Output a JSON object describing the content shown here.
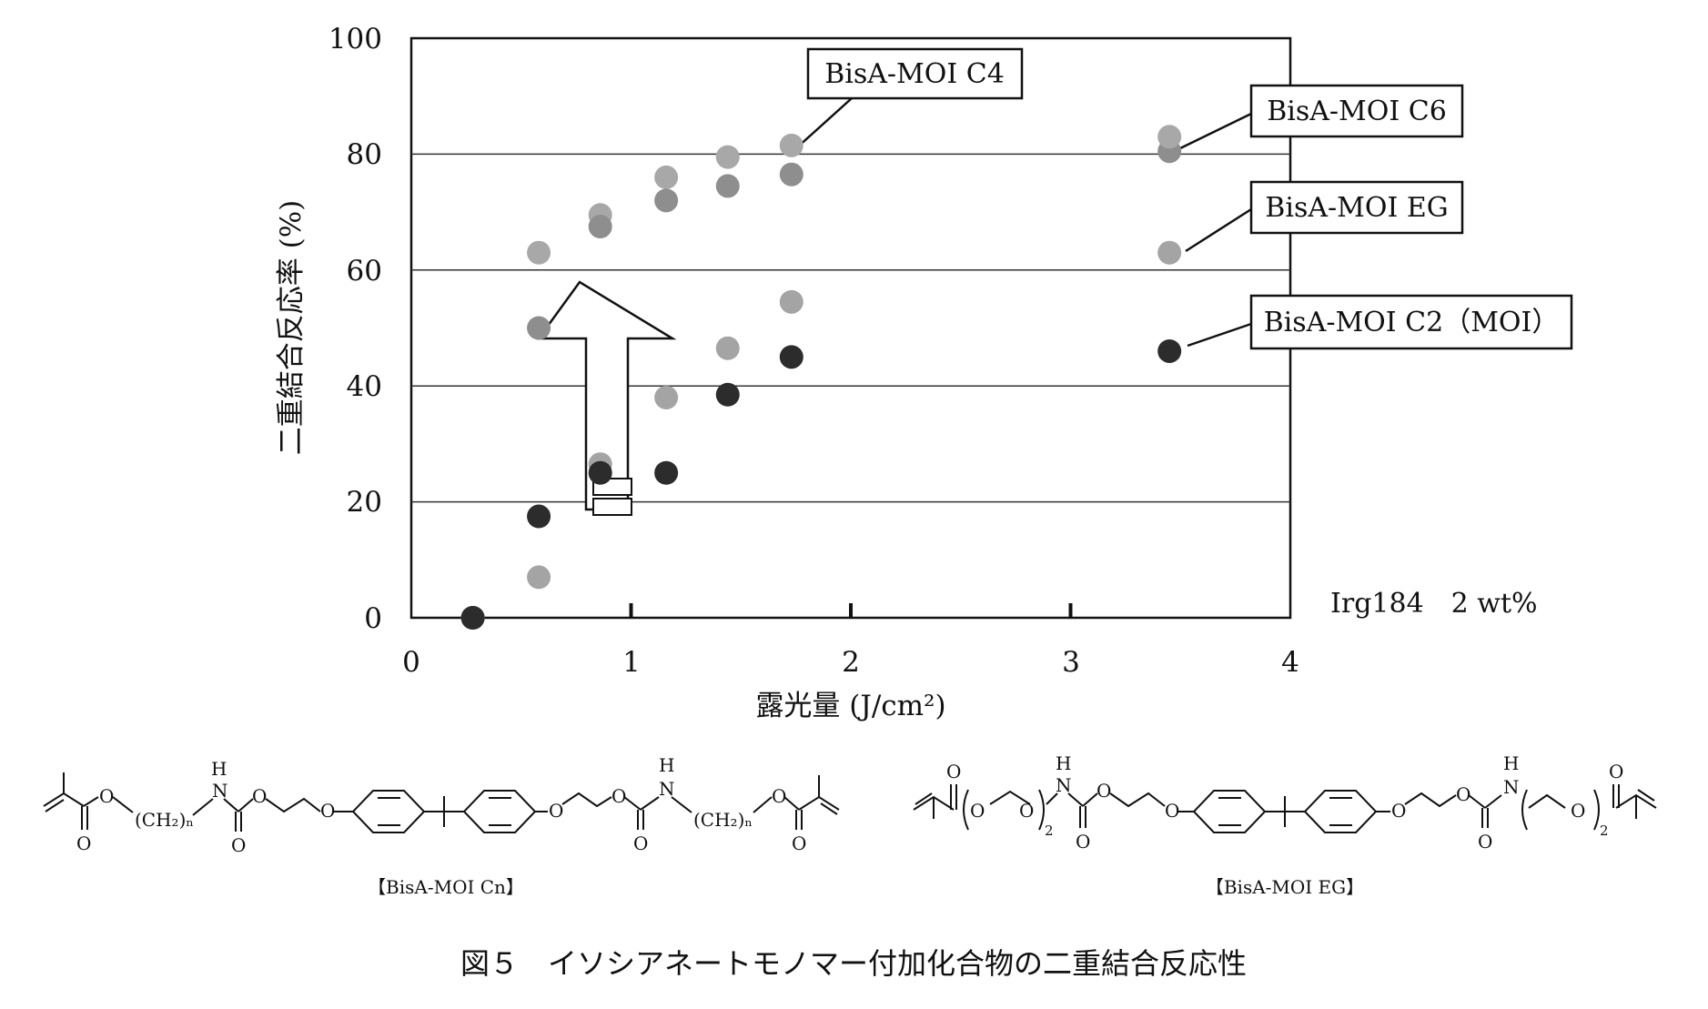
{
  "chart_data": {
    "type": "scatter",
    "title": "",
    "xlabel": "露光量 (J/cm²)",
    "ylabel": "二重結合反応率 (%)",
    "xlim": [
      0,
      4
    ],
    "ylim": [
      0,
      100
    ],
    "xticks": [
      "0",
      "1",
      "2",
      "3",
      "4"
    ],
    "yticks": [
      "0",
      "20",
      "40",
      "60",
      "80",
      "100"
    ],
    "grid": "horizontal",
    "series": [
      {
        "name": "BisA-MOI C4",
        "color": "#a8a8a8",
        "points": [
          {
            "x": 0.28,
            "y": 0
          },
          {
            "x": 0.58,
            "y": 63
          },
          {
            "x": 0.86,
            "y": 69.5
          },
          {
            "x": 1.16,
            "y": 76
          },
          {
            "x": 1.44,
            "y": 79.5
          },
          {
            "x": 1.73,
            "y": 81.5
          }
        ]
      },
      {
        "name": "BisA-MOI C6",
        "color": "#8e8e8e",
        "points": [
          {
            "x": 0.28,
            "y": 0
          },
          {
            "x": 0.58,
            "y": 50
          },
          {
            "x": 0.86,
            "y": 67.5
          },
          {
            "x": 1.16,
            "y": 72
          },
          {
            "x": 1.44,
            "y": 74.5
          },
          {
            "x": 1.73,
            "y": 76.5
          },
          {
            "x": 3.45,
            "y": 80.5
          }
        ]
      },
      {
        "name": "BisA-MOI EG",
        "color": "#a4a4a4",
        "points": [
          {
            "x": 0.28,
            "y": 0
          },
          {
            "x": 0.58,
            "y": 7
          },
          {
            "x": 0.86,
            "y": 26.5
          },
          {
            "x": 1.16,
            "y": 38
          },
          {
            "x": 1.44,
            "y": 46.5
          },
          {
            "x": 1.73,
            "y": 54.5
          },
          {
            "x": 3.45,
            "y": 63
          }
        ]
      },
      {
        "name": "BisA-MOI C2 (MOI)",
        "color": "#2c2c2c",
        "points": [
          {
            "x": 0.28,
            "y": 0
          },
          {
            "x": 0.58,
            "y": 17.5
          },
          {
            "x": 0.86,
            "y": 25
          },
          {
            "x": 1.16,
            "y": 25
          },
          {
            "x": 1.44,
            "y": 38.5
          },
          {
            "x": 1.73,
            "y": 45
          },
          {
            "x": 3.45,
            "y": 46
          }
        ]
      },
      {
        "name": "",
        "color": "#a8a8a8",
        "points": [
          {
            "x": 3.45,
            "y": 83
          }
        ]
      }
    ],
    "callouts": [
      {
        "label": "BisA-MOI C4",
        "x": 1.73,
        "y": 81.5
      },
      {
        "label": "BisA-MOI C6",
        "x": 3.45,
        "y": 81.5
      },
      {
        "label": "BisA-MOI EG",
        "x": 3.45,
        "y": 63
      },
      {
        "label": "BisA-MOI C2（MOI）",
        "x": 3.45,
        "y": 46
      }
    ],
    "annotations": [
      "Irg184　2 wt%"
    ]
  },
  "structures": {
    "left_caption": "【BisA-MOI Cn】",
    "right_caption": "【BisA-MOI EG】",
    "atom_o": "O",
    "atom_h": "H",
    "atom_n": "N",
    "ch2n": "(CH₂)ₙ",
    "sub_2": "2"
  },
  "figure_caption": "図５　イソシアネートモノマー付加化合物の二重結合反応性"
}
